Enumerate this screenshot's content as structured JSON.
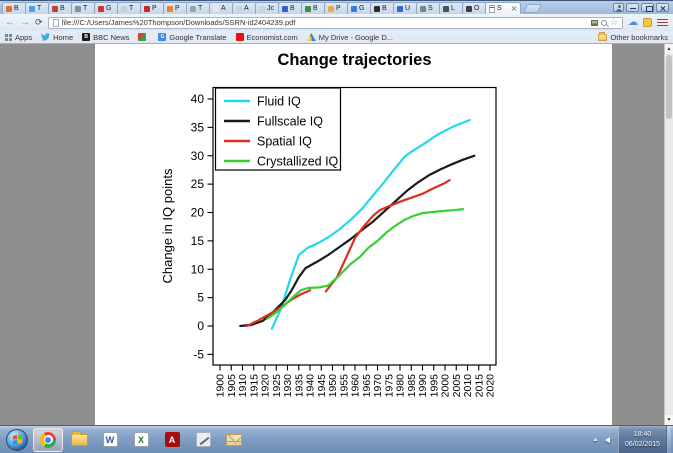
{
  "browser": {
    "tabs": [
      {
        "letter": "B",
        "color": "#e2711d"
      },
      {
        "letter": "T",
        "color": "#45a4e6"
      },
      {
        "letter": "B",
        "color": "#c63d2f"
      },
      {
        "letter": "T",
        "color": "#8a9099"
      },
      {
        "letter": "G",
        "color": "#d23227"
      },
      {
        "letter": "T",
        "color": "#c9cfd6"
      },
      {
        "letter": "P",
        "color": "#c8281e"
      },
      {
        "letter": "P",
        "color": "#e2872a"
      },
      {
        "letter": "T",
        "color": "#98a3ae"
      },
      {
        "letter": "A",
        "color": "#e3e7eb"
      },
      {
        "letter": "A",
        "color": "#cbd2d9"
      },
      {
        "letter": "Jc",
        "color": "#cbd2d9"
      },
      {
        "letter": "B",
        "color": "#3063c4"
      },
      {
        "letter": "B",
        "color": "#3d9142"
      },
      {
        "letter": "P",
        "color": "#f2a93b"
      },
      {
        "letter": "G",
        "color": "#3b7bd8"
      },
      {
        "letter": "B",
        "color": "#2b2b2b"
      },
      {
        "letter": "U",
        "color": "#2a6bcb"
      },
      {
        "letter": "S",
        "color": "#7d848c"
      },
      {
        "letter": "L",
        "color": "#4a4f55"
      },
      {
        "letter": "O",
        "color": "#3a3f45"
      }
    ],
    "active_tab": {
      "letter": "S"
    },
    "url": "file:///C:/Users/James%20Thompson/Downloads/SSRN-id2404239.pdf",
    "bookmarks": {
      "items": [
        {
          "label": "Apps"
        },
        {
          "label": "Home"
        },
        {
          "label": "BBC News"
        },
        {
          "label": ""
        },
        {
          "label": "Google Translate"
        },
        {
          "label": "Economist.com"
        },
        {
          "label": "My Drive - Google D..."
        }
      ],
      "other_label": "Other bookmarks"
    }
  },
  "icons": {
    "back": "←",
    "forward": "→",
    "reload": "⟳",
    "star": "☆",
    "cloud": "☁",
    "tray_arrow": "▴",
    "scroll_up": "▲",
    "scroll_down": "▼",
    "bbc": "B",
    "translate": "G",
    "word": "W",
    "excel": "X",
    "adobe": "A"
  },
  "taskbar": {
    "clock_time": "18:40",
    "clock_date": "06/02/2015"
  },
  "chart_data": {
    "type": "line",
    "title": "Change trajectories",
    "xlabel": "",
    "ylabel": "Change in IQ points",
    "xlim": [
      1900,
      2020
    ],
    "ylim": [
      -5,
      40
    ],
    "x_ticks": [
      1900,
      1905,
      1910,
      1915,
      1920,
      1925,
      1930,
      1935,
      1940,
      1945,
      1950,
      1955,
      1960,
      1965,
      1970,
      1975,
      1980,
      1985,
      1990,
      1995,
      2000,
      2005,
      2010,
      2015,
      2020
    ],
    "y_ticks": [
      -5,
      0,
      5,
      10,
      15,
      20,
      25,
      30,
      35,
      40
    ],
    "grid": false,
    "legend_position": "top-left",
    "series": [
      {
        "name": "Fluid IQ",
        "color": "#22d8ec",
        "segments": [
          [
            [
              1923,
              -0.5
            ],
            [
              1927,
              3
            ],
            [
              1931,
              8
            ],
            [
              1935,
              12.5
            ],
            [
              1939,
              13.8
            ],
            [
              1943,
              14.5
            ],
            [
              1948,
              15.6
            ],
            [
              1953,
              17
            ],
            [
              1958,
              18.7
            ],
            [
              1963,
              20.6
            ],
            [
              1968,
              23
            ],
            [
              1973,
              25.4
            ],
            [
              1978,
              27.9
            ],
            [
              1982,
              29.8
            ],
            [
              1985,
              30.7
            ],
            [
              1991,
              32.2
            ],
            [
              1997,
              33.8
            ],
            [
              2004,
              35.2
            ],
            [
              2011,
              36.3
            ]
          ]
        ]
      },
      {
        "name": "Fullscale IQ",
        "color": "#1a1a1a",
        "segments": [
          [
            [
              1909,
              0
            ],
            [
              1914,
              0.2
            ],
            [
              1919,
              0.9
            ],
            [
              1924,
              2.6
            ],
            [
              1929,
              4.6
            ],
            [
              1932,
              6.4
            ],
            [
              1935,
              8.6
            ],
            [
              1938,
              10.2
            ],
            [
              1943,
              11.3
            ],
            [
              1948,
              12.5
            ],
            [
              1953,
              13.9
            ],
            [
              1958,
              15.3
            ],
            [
              1963,
              16.9
            ],
            [
              1968,
              18.4
            ],
            [
              1973,
              20.2
            ],
            [
              1978,
              22
            ],
            [
              1983,
              23.8
            ],
            [
              1988,
              25.3
            ],
            [
              1993,
              26.6
            ],
            [
              1998,
              27.6
            ],
            [
              2003,
              28.5
            ],
            [
              2008,
              29.3
            ],
            [
              2013,
              30
            ]
          ]
        ]
      },
      {
        "name": "Spatial IQ",
        "color": "#dd2c20",
        "segments": [
          [
            [
              1912,
              0
            ],
            [
              1917,
              1
            ],
            [
              1922,
              2.1
            ],
            [
              1927,
              3.3
            ],
            [
              1932,
              4.7
            ],
            [
              1936,
              5.6
            ],
            [
              1940,
              6.3
            ]
          ],
          [
            [
              1947,
              6.1
            ],
            [
              1952,
              8.6
            ],
            [
              1956,
              12
            ],
            [
              1960,
              15.5
            ],
            [
              1964,
              17.6
            ],
            [
              1968,
              19.4
            ],
            [
              1971,
              20.4
            ],
            [
              1975,
              21.1
            ],
            [
              1980,
              21.9
            ],
            [
              1985,
              22.6
            ],
            [
              1990,
              23.3
            ],
            [
              1995,
              24.3
            ],
            [
              2000,
              25.2
            ],
            [
              2002,
              25.7
            ]
          ]
        ]
      },
      {
        "name": "Crystallized IQ",
        "color": "#36cf36",
        "segments": [
          [
            [
              1921,
              1.3
            ],
            [
              1925,
              2.4
            ],
            [
              1929,
              3.8
            ],
            [
              1933,
              5.3
            ],
            [
              1936,
              6.3
            ],
            [
              1939,
              6.7
            ],
            [
              1944,
              6.8
            ],
            [
              1948,
              7.1
            ],
            [
              1953,
              8.9
            ],
            [
              1958,
              10.9
            ],
            [
              1962,
              12.1
            ],
            [
              1966,
              13.8
            ],
            [
              1970,
              15
            ],
            [
              1974,
              16.5
            ],
            [
              1978,
              17.7
            ],
            [
              1982,
              18.7
            ],
            [
              1986,
              19.4
            ],
            [
              1990,
              19.9
            ],
            [
              1995,
              20.1
            ],
            [
              2000,
              20.3
            ],
            [
              2004,
              20.4
            ],
            [
              2008,
              20.6
            ]
          ]
        ]
      }
    ]
  }
}
